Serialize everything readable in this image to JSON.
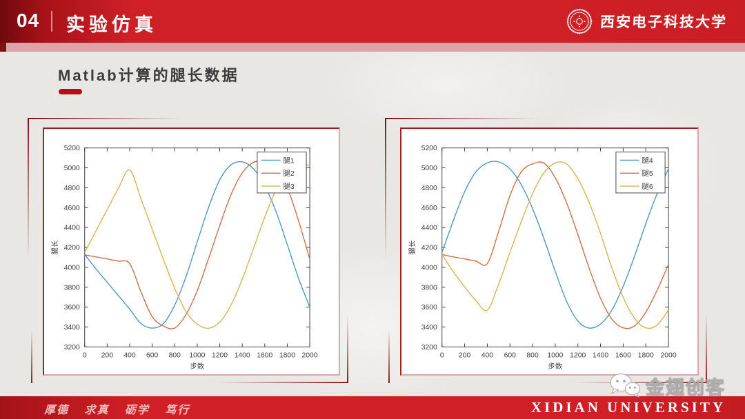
{
  "slide": {
    "header": {
      "number": "04",
      "title": "实验仿真",
      "university_name": "西安电子科技大学"
    },
    "section_title": "Matlab计算的腿长数据",
    "footer": {
      "motto": "厚德 求真 砺学 笃行",
      "university_en": "XIDIAN UNIVERSITY"
    },
    "watermark": "金翅创客"
  },
  "colors": {
    "header_red": "#d02027",
    "dark_red": "#7a1216",
    "accent_underline": "#bb0c11",
    "pink_strip": "#dda4a7",
    "axis": "#3f3f3f",
    "series_blue": "#4e94c4",
    "series_orange": "#c86f4a",
    "series_yellow": "#d6b44f"
  },
  "chart_data": [
    {
      "type": "line",
      "title": "",
      "xlabel": "步数",
      "ylabel": "腿长",
      "xlim": [
        0,
        2000
      ],
      "ylim": [
        3200,
        5200
      ],
      "xticks": [
        0,
        200,
        400,
        600,
        800,
        1000,
        1200,
        1400,
        1600,
        1800,
        2000
      ],
      "yticks": [
        3200,
        3400,
        3600,
        3800,
        4000,
        4200,
        4400,
        4600,
        4800,
        5000,
        5200
      ],
      "grid": false,
      "legend_position": "top-right",
      "x": [
        0,
        100,
        200,
        300,
        400,
        500,
        600,
        700,
        800,
        900,
        1000,
        1100,
        1200,
        1300,
        1400,
        1500,
        1600,
        1700,
        1800,
        1900,
        2000
      ],
      "series": [
        {
          "name": "腿1",
          "color": "#4e94c4",
          "values": [
            4130,
            3985,
            3850,
            3715,
            3580,
            3435,
            3390,
            3435,
            3620,
            3905,
            4255,
            4600,
            4880,
            5030,
            5060,
            4990,
            4820,
            4560,
            4230,
            3890,
            3600
          ]
        },
        {
          "name": "腿2",
          "color": "#c86f4a",
          "values": [
            4125,
            4105,
            4085,
            4062,
            4038,
            3755,
            3505,
            3410,
            3390,
            3525,
            3765,
            4085,
            4420,
            4730,
            4950,
            5055,
            5060,
            4990,
            4800,
            4470,
            4080
          ]
        },
        {
          "name": "腿3",
          "color": "#d6b44f",
          "values": [
            4150,
            4365,
            4580,
            4795,
            4980,
            4690,
            4385,
            4080,
            3790,
            3555,
            3430,
            3388,
            3450,
            3620,
            3880,
            4190,
            4505,
            4780,
            4970,
            5057,
            5020
          ]
        }
      ]
    },
    {
      "type": "line",
      "title": "",
      "xlabel": "步数",
      "ylabel": "腿长",
      "xlim": [
        0,
        2000
      ],
      "ylim": [
        3200,
        5200
      ],
      "xticks": [
        0,
        200,
        400,
        600,
        800,
        1000,
        1200,
        1400,
        1600,
        1800,
        2000
      ],
      "yticks": [
        3200,
        3400,
        3600,
        3800,
        4000,
        4200,
        4400,
        4600,
        4800,
        5000,
        5200
      ],
      "grid": false,
      "legend_position": "top-right",
      "x": [
        0,
        100,
        200,
        300,
        400,
        500,
        600,
        700,
        800,
        900,
        1000,
        1100,
        1200,
        1300,
        1400,
        1500,
        1600,
        1700,
        1800,
        1900,
        2000
      ],
      "series": [
        {
          "name": "腿4",
          "color": "#4e94c4",
          "values": [
            4150,
            4470,
            4760,
            4960,
            5050,
            5060,
            4990,
            4830,
            4590,
            4290,
            3960,
            3660,
            3460,
            3390,
            3430,
            3570,
            3810,
            4110,
            4440,
            4740,
            4990
          ]
        },
        {
          "name": "腿5",
          "color": "#c86f4a",
          "values": [
            4130,
            4105,
            4085,
            4062,
            4038,
            4360,
            4720,
            4960,
            5040,
            5048,
            4900,
            4650,
            4330,
            3990,
            3690,
            3480,
            3392,
            3410,
            3550,
            3770,
            4030
          ]
        },
        {
          "name": "腿6",
          "color": "#d6b44f",
          "values": [
            4130,
            3955,
            3805,
            3665,
            3570,
            3830,
            4150,
            4460,
            4740,
            4950,
            5050,
            5040,
            4890,
            4650,
            4340,
            3995,
            3700,
            3490,
            3392,
            3420,
            3570
          ]
        }
      ]
    }
  ]
}
